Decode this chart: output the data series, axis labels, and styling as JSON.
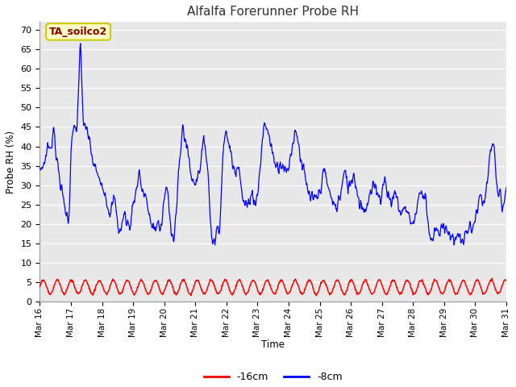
{
  "title": "Alfalfa Forerunner Probe RH",
  "xlabel": "Time",
  "ylabel": "Probe RH (%)",
  "ylim": [
    0,
    72
  ],
  "yticks": [
    0,
    5,
    10,
    15,
    20,
    25,
    30,
    35,
    40,
    45,
    50,
    55,
    60,
    65,
    70
  ],
  "fig_bg_color": "#ffffff",
  "plot_bg_color": "#e8e8e8",
  "grid_color": "#ffffff",
  "annotation_text": "TA_soilco2",
  "annotation_color": "#8b0000",
  "annotation_bg": "#ffffcc",
  "annotation_border": "#cccc00",
  "line_blue_color": "#0000ff",
  "line_red_color": "#ff0000",
  "legend_labels": [
    "-16cm",
    "-8cm"
  ],
  "x_tick_labels": [
    "Mar 16",
    "Mar 17",
    "Mar 18",
    "Mar 19",
    "Mar 20",
    "Mar 21",
    "Mar 22",
    "Mar 23",
    "Mar 24",
    "Mar 25",
    "Mar 26",
    "Mar 27",
    "Mar 28",
    "Mar 29",
    "Mar 30",
    "Mar 31"
  ],
  "blue_key_times": [
    0,
    0.15,
    0.25,
    0.35,
    0.45,
    0.55,
    0.65,
    0.75,
    0.85,
    0.95,
    1.0,
    1.1,
    1.2,
    1.3,
    1.35,
    1.4,
    1.45,
    1.5,
    1.55,
    1.6,
    1.7,
    1.8,
    1.9,
    2.0,
    2.1,
    2.2,
    2.3,
    2.4,
    2.5,
    2.6,
    2.7,
    2.8,
    2.9,
    3.0,
    3.1,
    3.2,
    3.3,
    3.4,
    3.5,
    3.6,
    3.7,
    3.8,
    3.9,
    4.0,
    4.1,
    4.2,
    4.3,
    4.4,
    4.5,
    4.6,
    4.7,
    4.8,
    4.9,
    5.0,
    5.1,
    5.2,
    5.3,
    5.4,
    5.5,
    5.6,
    5.7,
    5.8,
    5.9,
    6.0,
    6.1,
    6.2,
    6.3,
    6.4,
    6.5,
    6.6,
    6.7,
    6.8,
    6.9,
    7.0,
    7.1,
    7.2,
    7.3,
    7.4,
    7.5,
    7.6,
    7.7,
    7.8,
    7.9,
    8.0,
    8.1,
    8.2,
    8.3,
    8.4,
    8.5,
    8.6,
    8.7,
    8.8,
    8.9,
    9.0,
    9.1,
    9.2,
    9.3,
    9.4,
    9.5,
    9.6,
    9.7,
    9.8,
    9.9,
    10.0,
    10.1,
    10.2,
    10.3,
    10.4,
    10.5,
    10.6,
    10.7,
    10.8,
    10.9,
    11.0,
    11.1,
    11.2,
    11.3,
    11.4,
    11.5,
    11.6,
    11.7,
    11.8,
    11.9,
    12.0,
    12.1,
    12.2,
    12.3,
    12.4,
    12.5,
    12.6,
    12.7,
    12.8,
    12.9,
    13.0,
    13.1,
    13.2,
    13.3,
    13.4,
    13.5,
    13.6,
    13.7,
    13.8,
    13.9,
    14.0,
    14.1,
    14.2,
    14.3,
    14.4,
    14.5,
    14.6,
    14.7,
    14.8,
    14.9,
    15.0
  ],
  "blue_key_vals": [
    33,
    35,
    42,
    38,
    45,
    37,
    32,
    25,
    23,
    22,
    41,
    43,
    45,
    69,
    55,
    45,
    43,
    46,
    44,
    42,
    35,
    34,
    32,
    31,
    27,
    25,
    24,
    26,
    20,
    19,
    22,
    20,
    20,
    26,
    27,
    35,
    28,
    27,
    22,
    21,
    18,
    20,
    19,
    27,
    28,
    22,
    16,
    23,
    37,
    47,
    40,
    36,
    32,
    31,
    32,
    38,
    43,
    33,
    19,
    16,
    18,
    20,
    42,
    43,
    39,
    36,
    35,
    35,
    27,
    26,
    24,
    28,
    27,
    27,
    35,
    46,
    46,
    40,
    38,
    36,
    35,
    35,
    34,
    35,
    38,
    45,
    43,
    35,
    33,
    30,
    26,
    25,
    28,
    28,
    32,
    33,
    29,
    25,
    24,
    27,
    28,
    33,
    31,
    31,
    32,
    29,
    26,
    23,
    24,
    28,
    28,
    30,
    28,
    28,
    31,
    28,
    26,
    27,
    26,
    24,
    23,
    24,
    22,
    20,
    22,
    29,
    28,
    27,
    19,
    16,
    17,
    17,
    19,
    20,
    18,
    17,
    17,
    16,
    17,
    16,
    17,
    18,
    20,
    21,
    24,
    27,
    26,
    30,
    39,
    43,
    27,
    26,
    24,
    31
  ],
  "red_period": 0.45,
  "red_amplitude": 1.8,
  "red_base": 3.8,
  "n_points": 1000
}
